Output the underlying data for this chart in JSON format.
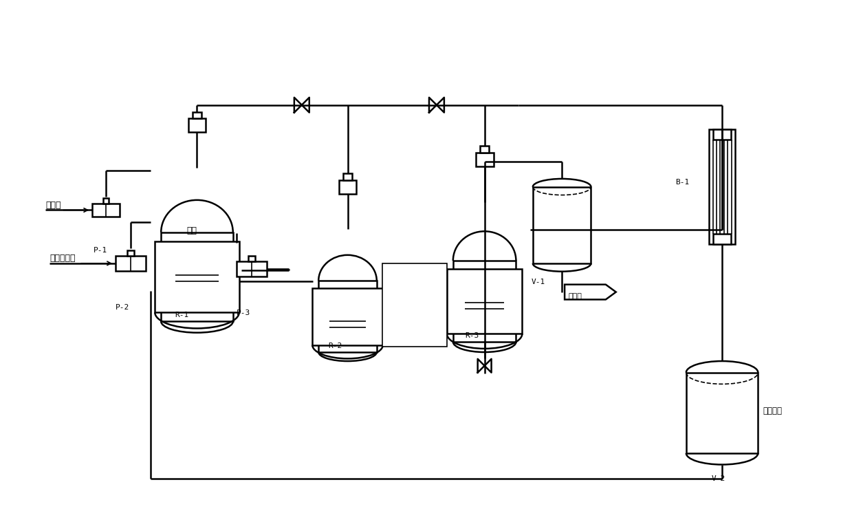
{
  "bg_color": "#ffffff",
  "line_color": "#000000",
  "line_width": 1.8,
  "fig_width": 12.39,
  "fig_height": 7.43,
  "labels": {
    "P1": "P-1",
    "P2": "P-2",
    "P3": "P-3",
    "R1": "R-1",
    "R2": "R-2",
    "R3": "R-3",
    "V1": "V-1",
    "V2": "V-2",
    "B1": "B-1",
    "trimethylamine": "三甲胺",
    "dimethyl_carbonate": "碳酸二甲酰",
    "solvent": "溶剂",
    "supplement": "补充溶剂",
    "post_process": "后处理"
  }
}
